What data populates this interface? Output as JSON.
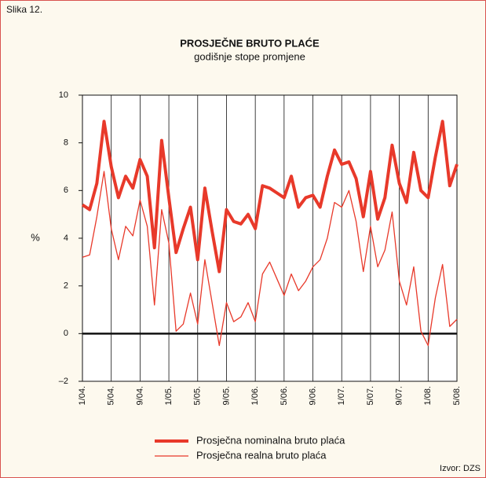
{
  "figure_label": "Slika 12.",
  "source": "Izvor: DZS",
  "chart_data": {
    "type": "line",
    "title": "PROSJEČNE BRUTO PLAĆE",
    "subtitle": "godišnje stope promjene",
    "y_label": "%",
    "categories": [
      "1/04.",
      null,
      null,
      null,
      "5/04.",
      null,
      null,
      null,
      "9/04.",
      null,
      null,
      null,
      "1/05.",
      null,
      null,
      null,
      "5/05.",
      null,
      null,
      null,
      "9/05.",
      null,
      null,
      null,
      "1/06.",
      null,
      null,
      null,
      "5/06.",
      null,
      null,
      null,
      "9/06.",
      null,
      null,
      null,
      "1/07.",
      null,
      null,
      null,
      "5/07.",
      null,
      null,
      null,
      "9/07.",
      null,
      null,
      null,
      "1/08.",
      null,
      null,
      null,
      "5/08."
    ],
    "series": [
      {
        "name": "Prosječna nominalna bruto plaća",
        "color": "#e8392a",
        "width": 4,
        "values": [
          5.4,
          5.2,
          6.3,
          8.9,
          7.0,
          5.7,
          6.6,
          6.1,
          7.3,
          6.6,
          3.6,
          8.1,
          5.7,
          3.4,
          4.4,
          5.3,
          3.1,
          6.1,
          4.3,
          2.6,
          5.2,
          4.7,
          4.6,
          5.0,
          4.4,
          6.2,
          6.1,
          5.9,
          5.7,
          6.6,
          5.3,
          5.7,
          5.8,
          5.3,
          6.6,
          7.7,
          7.1,
          7.2,
          6.5,
          4.9,
          6.8,
          4.8,
          5.7,
          7.9,
          6.3,
          5.5,
          7.6,
          6.0,
          5.7,
          7.4,
          8.9,
          6.2,
          7.1
        ]
      },
      {
        "name": "Prosječna realna bruto plaća",
        "color": "#e8392a",
        "width": 1.3,
        "values": [
          3.2,
          3.3,
          4.9,
          6.8,
          4.4,
          3.1,
          4.5,
          4.1,
          5.6,
          4.5,
          1.2,
          5.2,
          3.8,
          0.1,
          0.4,
          1.7,
          0.4,
          3.1,
          1.3,
          -0.5,
          1.3,
          0.5,
          0.7,
          1.3,
          0.5,
          2.5,
          3.0,
          2.3,
          1.6,
          2.5,
          1.8,
          2.2,
          2.8,
          3.1,
          4.0,
          5.5,
          5.3,
          6.0,
          4.7,
          2.6,
          4.5,
          2.8,
          3.5,
          5.1,
          2.2,
          1.2,
          2.8,
          0.1,
          -0.5,
          1.5,
          2.9,
          0.3,
          0.6
        ]
      }
    ],
    "ylim": [
      -2,
      10
    ],
    "yticks": [
      {
        "value": -2,
        "label": "–2"
      },
      0,
      2,
      4,
      6,
      8,
      10
    ],
    "grid": "x"
  }
}
